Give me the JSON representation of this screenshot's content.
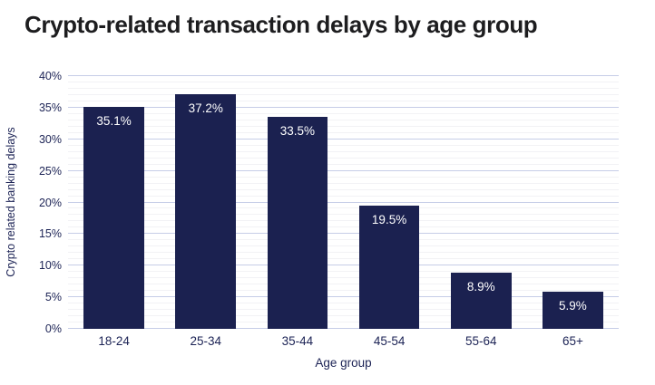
{
  "chart_data": {
    "type": "bar",
    "title": "Crypto-related transaction delays by age group",
    "categories": [
      "18-24",
      "25-34",
      "35-44",
      "45-54",
      "55-64",
      "65+"
    ],
    "values": [
      35.1,
      37.2,
      33.5,
      19.5,
      8.9,
      5.9
    ],
    "value_labels": [
      "35.1%",
      "37.2%",
      "33.5%",
      "19.5%",
      "8.9%",
      "5.9%"
    ],
    "xlabel": "Age group",
    "ylabel": "Crypto related banking delays",
    "ylim": [
      0,
      40
    ],
    "y_tick_step": 5,
    "y_tick_labels": [
      "0%",
      "5%",
      "10%",
      "15%",
      "20%",
      "25%",
      "30%",
      "35%",
      "40%"
    ],
    "grid": {
      "major_step": 5,
      "minor_step": 1,
      "gridlines": "horizontal"
    },
    "legend": "none",
    "bar_width_fraction": 0.66,
    "colors": {
      "bar": "#1b2150",
      "value_label": "#ffffff",
      "axis_text": "#1c2355",
      "title_text": "#1d1d1f",
      "major_gridline": "#c6cde7",
      "minor_gridline": "#f2f2f5",
      "background": "#ffffff"
    }
  }
}
